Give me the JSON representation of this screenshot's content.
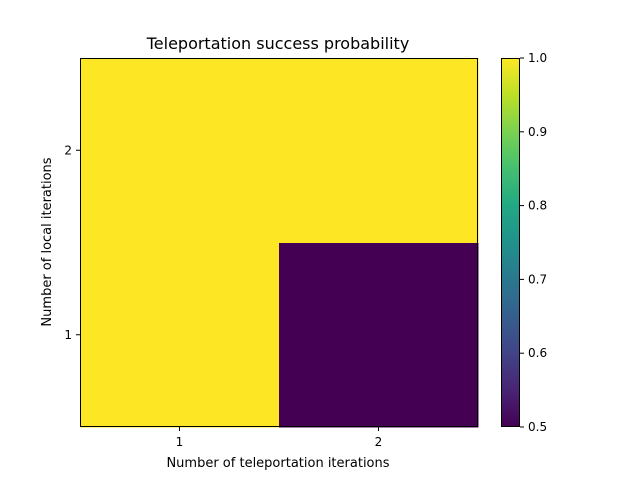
{
  "chart_data": {
    "type": "heatmap",
    "title": "Teleportation success probability",
    "xlabel": "Number of teleportation iterations",
    "ylabel": "Number of local iterations",
    "x_categories": [
      "1",
      "2"
    ],
    "y_categories": [
      "1",
      "2"
    ],
    "values": [
      [
        1.0,
        0.5
      ],
      [
        1.0,
        1.0
      ]
    ],
    "colormap": "viridis",
    "colorbar": {
      "min": 0.5,
      "max": 1.0,
      "ticks": [
        "0.5",
        "0.6",
        "0.7",
        "0.8",
        "0.9",
        "1.0"
      ]
    },
    "colors": {
      "low": "#440154",
      "high": "#fde725"
    }
  }
}
